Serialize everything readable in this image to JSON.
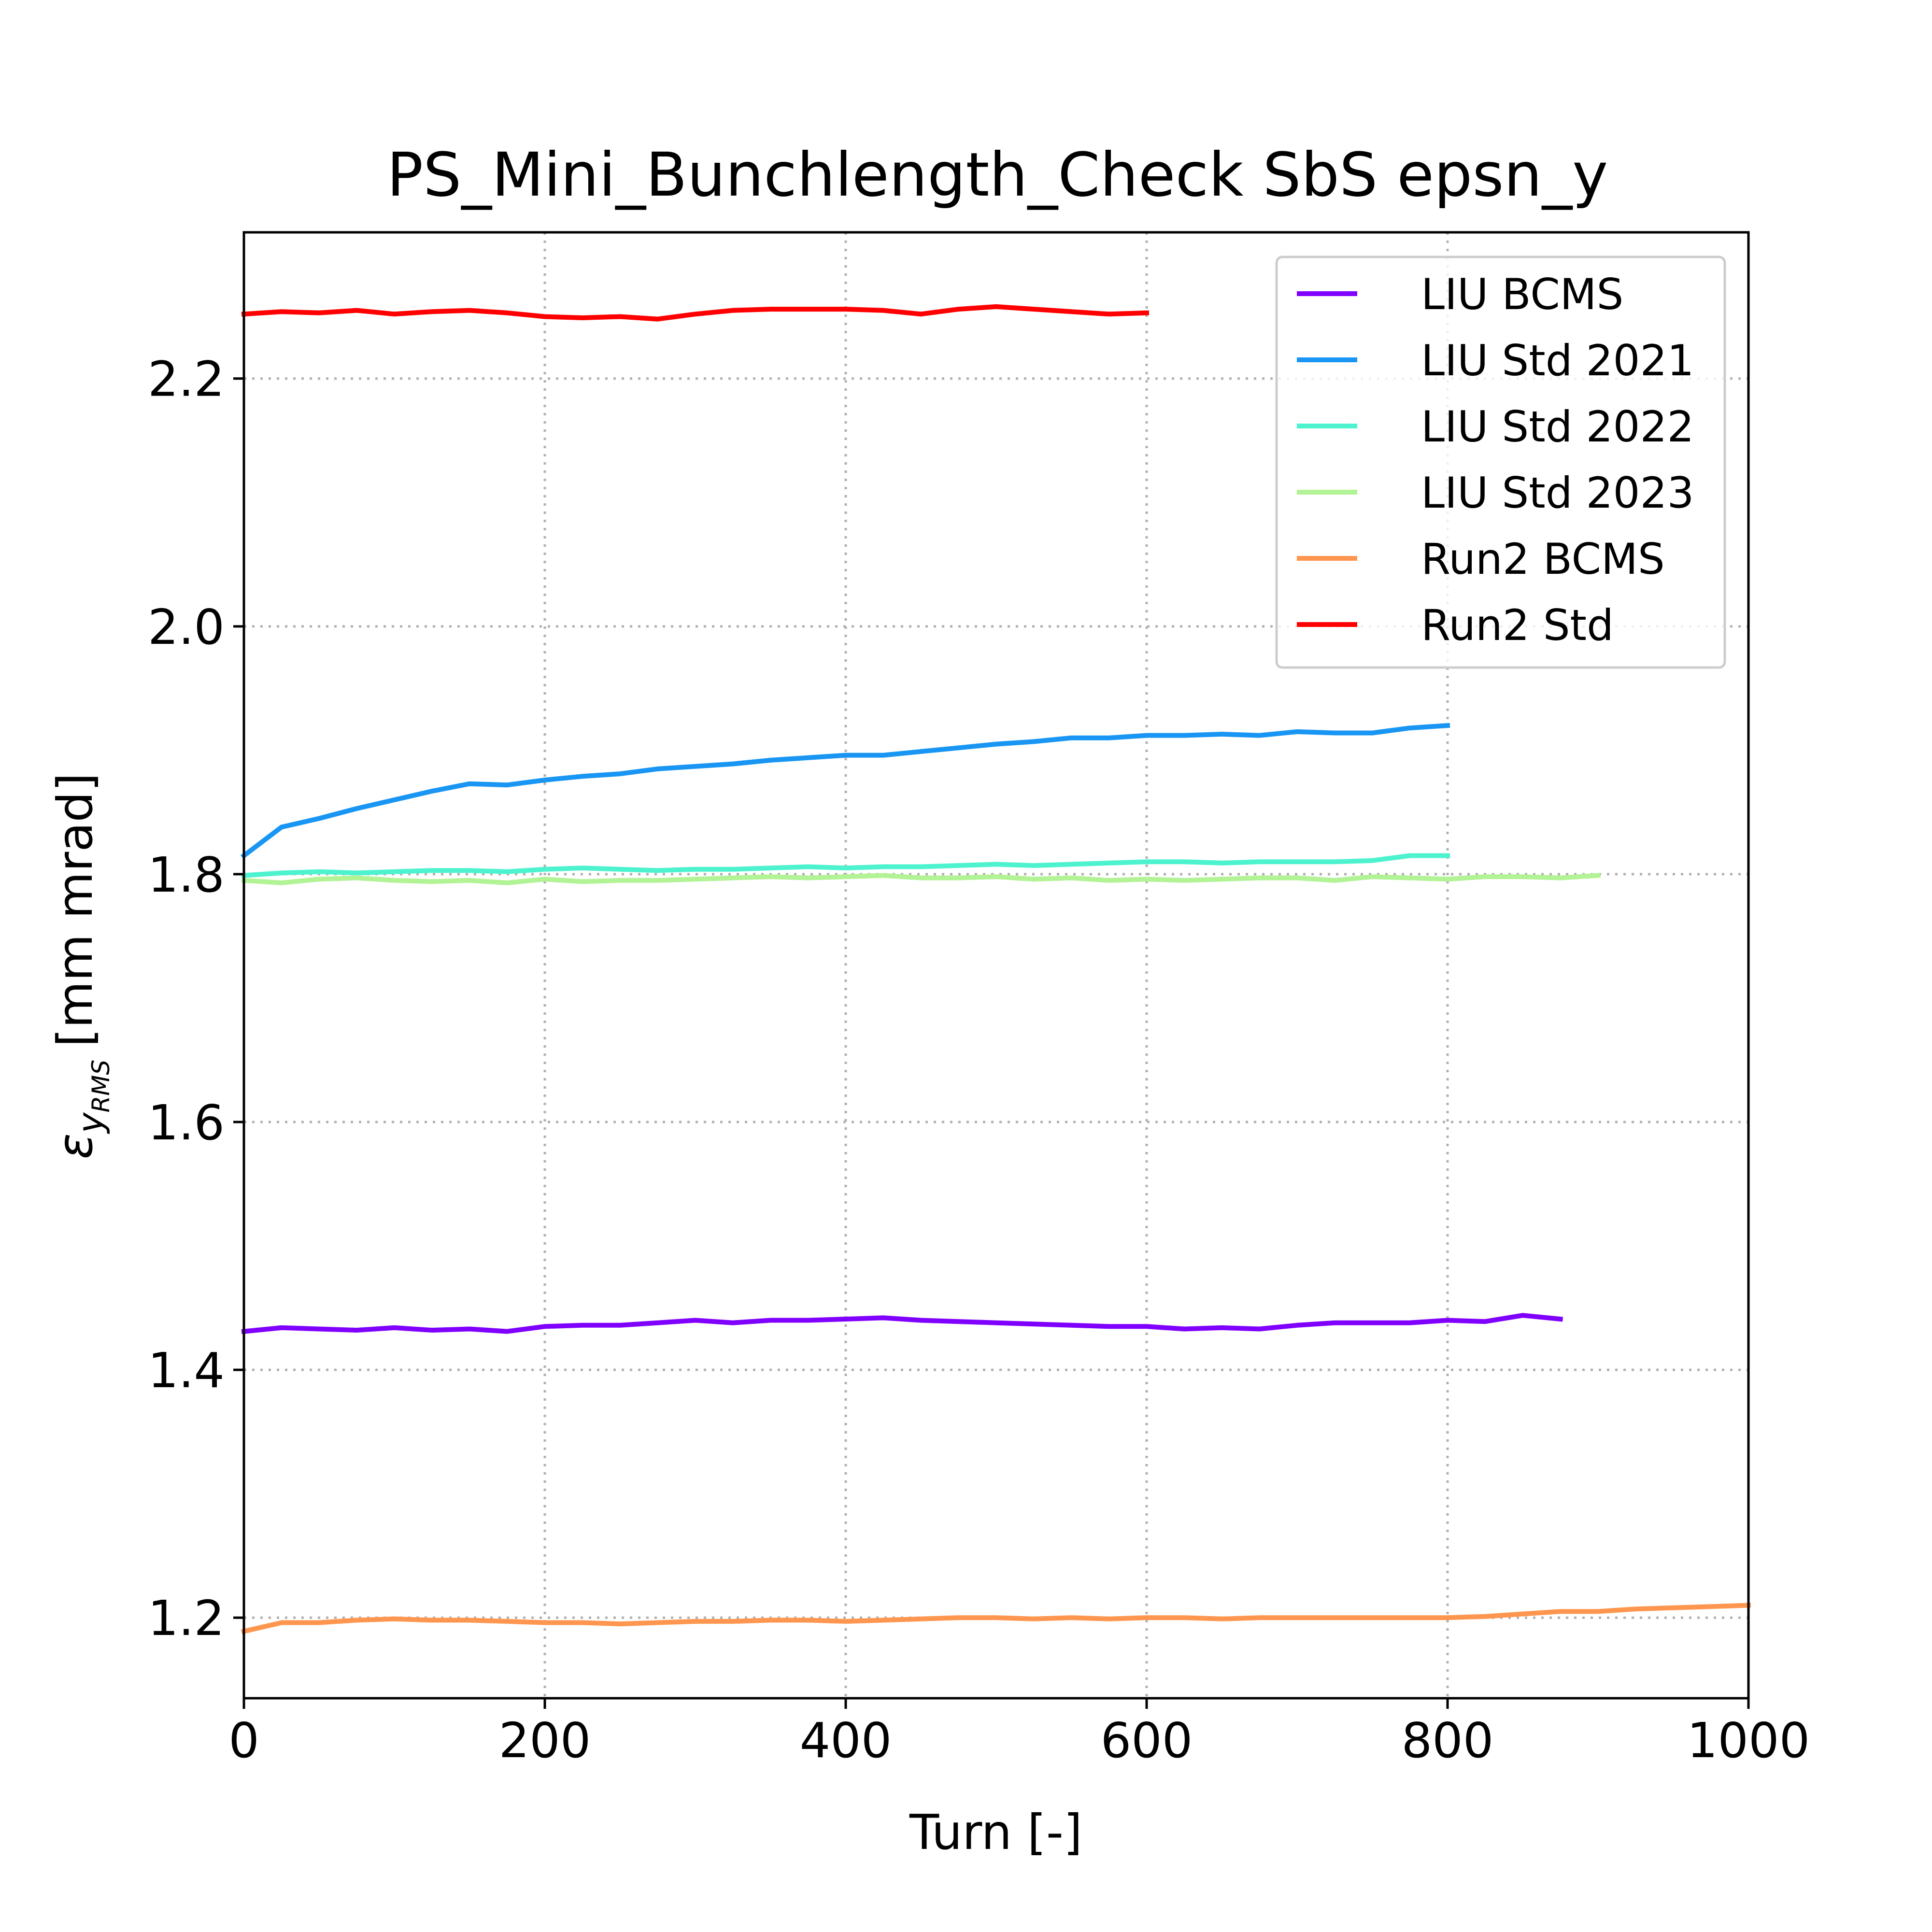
{
  "chart_data": {
    "type": "line",
    "title": "PS_Mini_Bunchlength_Check SbS epsn_y",
    "xlabel": "Turn [-]",
    "ylabel": {
      "symbol": "ε",
      "sub": "y",
      "subsub": "RMS",
      "unit": "[mm mrad]"
    },
    "xlim": [
      0,
      1000
    ],
    "ylim": [
      1.135,
      2.318
    ],
    "xticks": [
      0,
      200,
      400,
      600,
      800,
      1000
    ],
    "xtick_labels": [
      "0",
      "200",
      "400",
      "600",
      "800",
      "1000"
    ],
    "yticks": [
      1.2,
      1.4,
      1.6,
      1.8,
      2.0,
      2.2
    ],
    "ytick_labels": [
      "1.2",
      "1.4",
      "1.6",
      "1.8",
      "2.0",
      "2.2"
    ],
    "grid": true,
    "legend_position": "top-right",
    "series": [
      {
        "name": "LIU BCMS",
        "color": "#8000ff",
        "x": [
          0,
          25,
          50,
          75,
          100,
          125,
          150,
          175,
          200,
          225,
          250,
          275,
          300,
          325,
          350,
          375,
          400,
          425,
          450,
          475,
          500,
          525,
          550,
          575,
          600,
          625,
          650,
          675,
          700,
          725,
          750,
          775,
          800,
          825,
          850,
          875
        ],
        "y": [
          1.431,
          1.434,
          1.433,
          1.432,
          1.434,
          1.432,
          1.433,
          1.431,
          1.435,
          1.436,
          1.436,
          1.438,
          1.44,
          1.438,
          1.44,
          1.44,
          1.441,
          1.442,
          1.44,
          1.439,
          1.438,
          1.437,
          1.436,
          1.435,
          1.435,
          1.433,
          1.434,
          1.433,
          1.436,
          1.438,
          1.438,
          1.438,
          1.44,
          1.439,
          1.444,
          1.441
        ]
      },
      {
        "name": "LIU Std 2021",
        "color": "#1996f3",
        "x": [
          0,
          25,
          50,
          75,
          100,
          125,
          150,
          175,
          200,
          225,
          250,
          275,
          300,
          325,
          350,
          375,
          400,
          425,
          450,
          475,
          500,
          525,
          550,
          575,
          600,
          625,
          650,
          675,
          700,
          725,
          750,
          775,
          800
        ],
        "y": [
          1.815,
          1.838,
          1.845,
          1.853,
          1.86,
          1.867,
          1.873,
          1.872,
          1.876,
          1.879,
          1.881,
          1.885,
          1.887,
          1.889,
          1.892,
          1.894,
          1.896,
          1.896,
          1.899,
          1.902,
          1.905,
          1.907,
          1.91,
          1.91,
          1.912,
          1.912,
          1.913,
          1.912,
          1.915,
          1.914,
          1.914,
          1.918,
          1.92
        ]
      },
      {
        "name": "LIU Std 2022",
        "color": "#4df3ce",
        "x": [
          0,
          25,
          50,
          75,
          100,
          125,
          150,
          175,
          200,
          225,
          250,
          275,
          300,
          325,
          350,
          375,
          400,
          425,
          450,
          475,
          500,
          525,
          550,
          575,
          600,
          625,
          650,
          675,
          700,
          725,
          750,
          775,
          800
        ],
        "y": [
          1.799,
          1.801,
          1.802,
          1.801,
          1.802,
          1.803,
          1.803,
          1.802,
          1.804,
          1.805,
          1.804,
          1.803,
          1.804,
          1.804,
          1.805,
          1.806,
          1.805,
          1.806,
          1.806,
          1.807,
          1.808,
          1.807,
          1.808,
          1.809,
          1.81,
          1.81,
          1.809,
          1.81,
          1.81,
          1.81,
          1.811,
          1.815,
          1.815
        ]
      },
      {
        "name": "LIU Std 2023",
        "color": "#b2f396",
        "x": [
          0,
          25,
          50,
          75,
          100,
          125,
          150,
          175,
          200,
          225,
          250,
          275,
          300,
          325,
          350,
          375,
          400,
          425,
          450,
          475,
          500,
          525,
          550,
          575,
          600,
          625,
          650,
          675,
          700,
          725,
          750,
          775,
          800,
          825,
          850,
          875,
          900
        ],
        "y": [
          1.795,
          1.793,
          1.796,
          1.797,
          1.795,
          1.794,
          1.795,
          1.793,
          1.796,
          1.794,
          1.795,
          1.795,
          1.796,
          1.797,
          1.798,
          1.797,
          1.798,
          1.799,
          1.797,
          1.797,
          1.798,
          1.796,
          1.797,
          1.795,
          1.796,
          1.795,
          1.796,
          1.797,
          1.797,
          1.795,
          1.798,
          1.797,
          1.796,
          1.798,
          1.798,
          1.797,
          1.799
        ]
      },
      {
        "name": "Run2 BCMS",
        "color": "#ff964f",
        "x": [
          0,
          25,
          50,
          75,
          100,
          125,
          150,
          175,
          200,
          225,
          250,
          275,
          300,
          325,
          350,
          375,
          400,
          425,
          450,
          475,
          500,
          525,
          550,
          575,
          600,
          625,
          650,
          675,
          700,
          725,
          750,
          775,
          800,
          825,
          850,
          875,
          900,
          925,
          950,
          975,
          1000
        ],
        "y": [
          1.189,
          1.196,
          1.196,
          1.198,
          1.199,
          1.198,
          1.198,
          1.197,
          1.196,
          1.196,
          1.195,
          1.196,
          1.197,
          1.197,
          1.198,
          1.198,
          1.197,
          1.198,
          1.199,
          1.2,
          1.2,
          1.199,
          1.2,
          1.199,
          1.2,
          1.2,
          1.199,
          1.2,
          1.2,
          1.2,
          1.2,
          1.2,
          1.2,
          1.201,
          1.203,
          1.205,
          1.205,
          1.207,
          1.208,
          1.209,
          1.21
        ]
      },
      {
        "name": "Run2 Std",
        "color": "#ff0000",
        "x": [
          0,
          25,
          50,
          75,
          100,
          125,
          150,
          175,
          200,
          225,
          250,
          275,
          300,
          325,
          350,
          375,
          400,
          425,
          450,
          475,
          500,
          525,
          550,
          575,
          600
        ],
        "y": [
          2.252,
          2.254,
          2.253,
          2.255,
          2.252,
          2.254,
          2.255,
          2.253,
          2.25,
          2.249,
          2.25,
          2.248,
          2.252,
          2.255,
          2.256,
          2.256,
          2.256,
          2.255,
          2.252,
          2.256,
          2.258,
          2.256,
          2.254,
          2.252,
          2.253
        ]
      }
    ]
  }
}
